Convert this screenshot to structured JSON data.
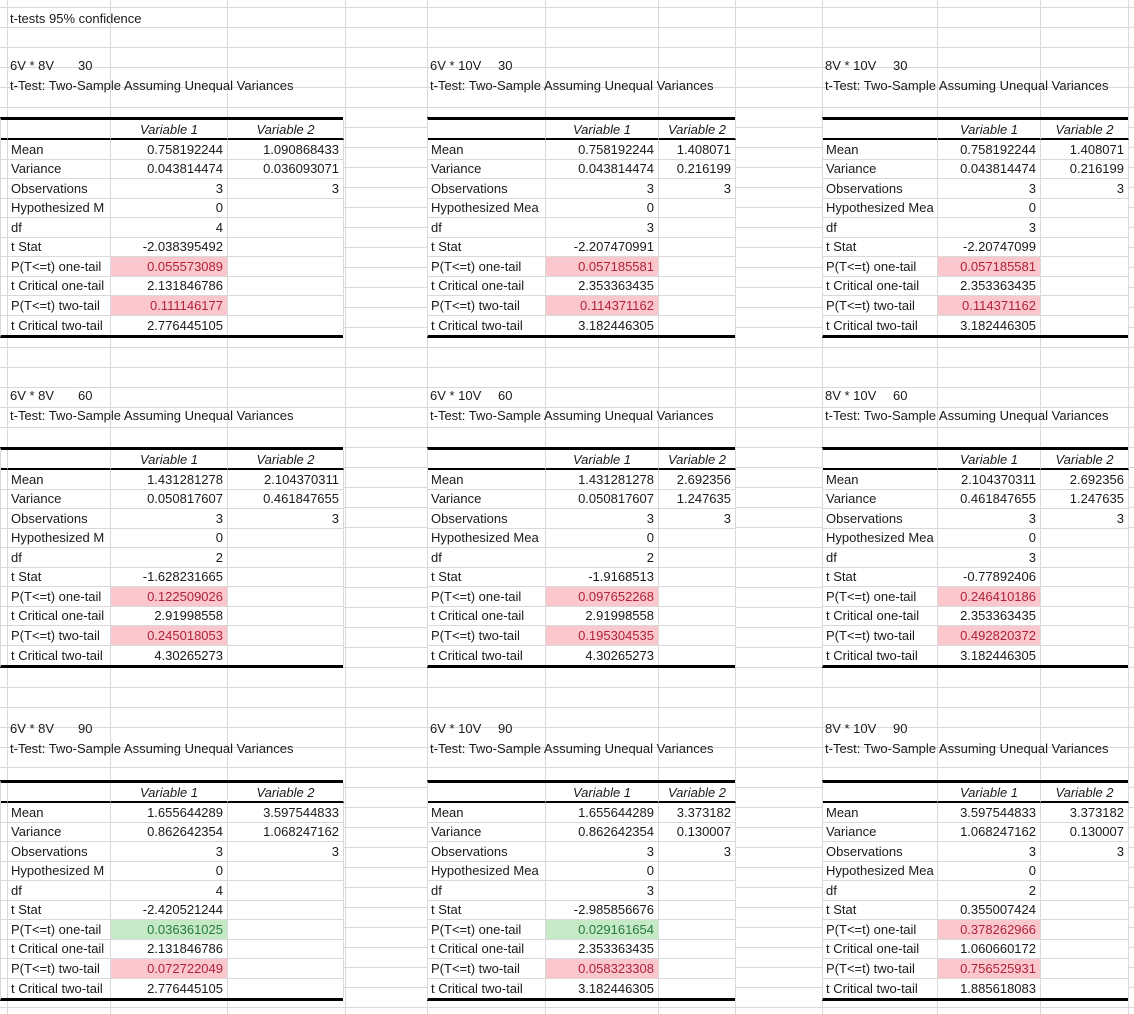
{
  "sheet_title": "t-tests 95% confidence",
  "headers": {
    "v1": "Variable 1",
    "v2": "Variable 2"
  },
  "colors": {
    "gridline": "#d9d9d9",
    "flag_bad_bg": "#fac7cd",
    "flag_bad_text": "#b02338",
    "flag_good_bg": "#c6e9c8",
    "flag_good_text": "#237c3b",
    "selection_border": "#1e7145"
  },
  "selection": {
    "table": "8V * 10V 90",
    "row": "P(T<=t) two-tail",
    "value": "0.756525931"
  },
  "tables": [
    {
      "pair": "6V * 8V",
      "n": "30",
      "test_title": "t-Test: Two-Sample Assuming Unequal Variances",
      "rows": [
        {
          "label": "Mean",
          "v1": "0.758192244",
          "v2": "1.090868433",
          "hl": ""
        },
        {
          "label": "Variance",
          "v1": "0.043814474",
          "v2": "0.036093071",
          "hl": ""
        },
        {
          "label": "Observations",
          "v1": "3",
          "v2": "3",
          "hl": ""
        },
        {
          "label": "Hypothesized M",
          "v1": "0",
          "v2": "",
          "hl": ""
        },
        {
          "label": "df",
          "v1": "4",
          "v2": "",
          "hl": ""
        },
        {
          "label": "t Stat",
          "v1": "-2.038395492",
          "v2": "",
          "hl": ""
        },
        {
          "label": "P(T<=t) one-tail",
          "v1": "0.055573089",
          "v2": "",
          "hl": "pink"
        },
        {
          "label": "t Critical one-tail",
          "v1": "2.131846786",
          "v2": "",
          "hl": ""
        },
        {
          "label": "P(T<=t) two-tail",
          "v1": "0.111146177",
          "v2": "",
          "hl": "pink"
        },
        {
          "label": "t Critical two-tail",
          "v1": "2.776445105",
          "v2": "",
          "hl": ""
        }
      ]
    },
    {
      "pair": "6V * 10V",
      "n": "30",
      "test_title": "t-Test: Two-Sample Assuming Unequal Variances",
      "rows": [
        {
          "label": "Mean",
          "v1": "0.758192244",
          "v2": "1.408071",
          "hl": ""
        },
        {
          "label": "Variance",
          "v1": "0.043814474",
          "v2": "0.216199",
          "hl": ""
        },
        {
          "label": "Observations",
          "v1": "3",
          "v2": "3",
          "hl": ""
        },
        {
          "label": "Hypothesized Mea",
          "v1": "0",
          "v2": "",
          "hl": ""
        },
        {
          "label": "df",
          "v1": "3",
          "v2": "",
          "hl": ""
        },
        {
          "label": "t Stat",
          "v1": "-2.207470991",
          "v2": "",
          "hl": ""
        },
        {
          "label": "P(T<=t) one-tail",
          "v1": "0.057185581",
          "v2": "",
          "hl": "pink"
        },
        {
          "label": "t Critical one-tail",
          "v1": "2.353363435",
          "v2": "",
          "hl": ""
        },
        {
          "label": "P(T<=t) two-tail",
          "v1": "0.114371162",
          "v2": "",
          "hl": "pink"
        },
        {
          "label": "t Critical two-tail",
          "v1": "3.182446305",
          "v2": "",
          "hl": ""
        }
      ]
    },
    {
      "pair": "8V * 10V",
      "n": "30",
      "test_title": "t-Test: Two-Sample Assuming Unequal Variances",
      "rows": [
        {
          "label": "Mean",
          "v1": "0.758192244",
          "v2": "1.408071",
          "hl": ""
        },
        {
          "label": "Variance",
          "v1": "0.043814474",
          "v2": "0.216199",
          "hl": ""
        },
        {
          "label": "Observations",
          "v1": "3",
          "v2": "3",
          "hl": ""
        },
        {
          "label": "Hypothesized Mea",
          "v1": "0",
          "v2": "",
          "hl": ""
        },
        {
          "label": "df",
          "v1": "3",
          "v2": "",
          "hl": ""
        },
        {
          "label": "t Stat",
          "v1": "-2.20747099",
          "v2": "",
          "hl": ""
        },
        {
          "label": "P(T<=t) one-tail",
          "v1": "0.057185581",
          "v2": "",
          "hl": "pink"
        },
        {
          "label": "t Critical one-tail",
          "v1": "2.353363435",
          "v2": "",
          "hl": ""
        },
        {
          "label": "P(T<=t) two-tail",
          "v1": "0.114371162",
          "v2": "",
          "hl": "pink"
        },
        {
          "label": "t Critical two-tail",
          "v1": "3.182446305",
          "v2": "",
          "hl": ""
        }
      ]
    },
    {
      "pair": "6V * 8V",
      "n": "60",
      "test_title": "t-Test: Two-Sample Assuming Unequal Variances",
      "rows": [
        {
          "label": "Mean",
          "v1": "1.431281278",
          "v2": "2.104370311",
          "hl": ""
        },
        {
          "label": "Variance",
          "v1": "0.050817607",
          "v2": "0.461847655",
          "hl": ""
        },
        {
          "label": "Observations",
          "v1": "3",
          "v2": "3",
          "hl": ""
        },
        {
          "label": "Hypothesized M",
          "v1": "0",
          "v2": "",
          "hl": ""
        },
        {
          "label": "df",
          "v1": "2",
          "v2": "",
          "hl": ""
        },
        {
          "label": "t Stat",
          "v1": "-1.628231665",
          "v2": "",
          "hl": ""
        },
        {
          "label": "P(T<=t) one-tail",
          "v1": "0.122509026",
          "v2": "",
          "hl": "pink"
        },
        {
          "label": "t Critical one-tail",
          "v1": "2.91998558",
          "v2": "",
          "hl": ""
        },
        {
          "label": "P(T<=t) two-tail",
          "v1": "0.245018053",
          "v2": "",
          "hl": "pink"
        },
        {
          "label": "t Critical two-tail",
          "v1": "4.30265273",
          "v2": "",
          "hl": ""
        }
      ]
    },
    {
      "pair": "6V * 10V",
      "n": "60",
      "test_title": "t-Test: Two-Sample Assuming Unequal Variances",
      "rows": [
        {
          "label": "Mean",
          "v1": "1.431281278",
          "v2": "2.692356",
          "hl": ""
        },
        {
          "label": "Variance",
          "v1": "0.050817607",
          "v2": "1.247635",
          "hl": ""
        },
        {
          "label": "Observations",
          "v1": "3",
          "v2": "3",
          "hl": ""
        },
        {
          "label": "Hypothesized Mea",
          "v1": "0",
          "v2": "",
          "hl": ""
        },
        {
          "label": "df",
          "v1": "2",
          "v2": "",
          "hl": ""
        },
        {
          "label": "t Stat",
          "v1": "-1.9168513",
          "v2": "",
          "hl": ""
        },
        {
          "label": "P(T<=t) one-tail",
          "v1": "0.097652268",
          "v2": "",
          "hl": "pink"
        },
        {
          "label": "t Critical one-tail",
          "v1": "2.91998558",
          "v2": "",
          "hl": ""
        },
        {
          "label": "P(T<=t) two-tail",
          "v1": "0.195304535",
          "v2": "",
          "hl": "pink"
        },
        {
          "label": "t Critical two-tail",
          "v1": "4.30265273",
          "v2": "",
          "hl": ""
        }
      ]
    },
    {
      "pair": "8V * 10V",
      "n": "60",
      "test_title": "t-Test: Two-Sample Assuming Unequal Variances",
      "rows": [
        {
          "label": "Mean",
          "v1": "2.104370311",
          "v2": "2.692356",
          "hl": ""
        },
        {
          "label": "Variance",
          "v1": "0.461847655",
          "v2": "1.247635",
          "hl": ""
        },
        {
          "label": "Observations",
          "v1": "3",
          "v2": "3",
          "hl": ""
        },
        {
          "label": "Hypothesized Mea",
          "v1": "0",
          "v2": "",
          "hl": ""
        },
        {
          "label": "df",
          "v1": "3",
          "v2": "",
          "hl": ""
        },
        {
          "label": "t Stat",
          "v1": "-0.77892406",
          "v2": "",
          "hl": ""
        },
        {
          "label": "P(T<=t) one-tail",
          "v1": "0.246410186",
          "v2": "",
          "hl": "pink"
        },
        {
          "label": "t Critical one-tail",
          "v1": "2.353363435",
          "v2": "",
          "hl": ""
        },
        {
          "label": "P(T<=t) two-tail",
          "v1": "0.492820372",
          "v2": "",
          "hl": "pink"
        },
        {
          "label": "t Critical two-tail",
          "v1": "3.182446305",
          "v2": "",
          "hl": ""
        }
      ]
    },
    {
      "pair": "6V * 8V",
      "n": "90",
      "test_title": "t-Test: Two-Sample Assuming Unequal Variances",
      "rows": [
        {
          "label": "Mean",
          "v1": "1.655644289",
          "v2": "3.597544833",
          "hl": ""
        },
        {
          "label": "Variance",
          "v1": "0.862642354",
          "v2": "1.068247162",
          "hl": ""
        },
        {
          "label": "Observations",
          "v1": "3",
          "v2": "3",
          "hl": ""
        },
        {
          "label": "Hypothesized M",
          "v1": "0",
          "v2": "",
          "hl": ""
        },
        {
          "label": "df",
          "v1": "4",
          "v2": "",
          "hl": ""
        },
        {
          "label": "t Stat",
          "v1": "-2.420521244",
          "v2": "",
          "hl": ""
        },
        {
          "label": "P(T<=t) one-tail",
          "v1": "0.036361025",
          "v2": "",
          "hl": "green"
        },
        {
          "label": "t Critical one-tail",
          "v1": "2.131846786",
          "v2": "",
          "hl": ""
        },
        {
          "label": "P(T<=t) two-tail",
          "v1": "0.072722049",
          "v2": "",
          "hl": "pink"
        },
        {
          "label": "t Critical two-tail",
          "v1": "2.776445105",
          "v2": "",
          "hl": ""
        }
      ]
    },
    {
      "pair": "6V * 10V",
      "n": "90",
      "test_title": "t-Test: Two-Sample Assuming Unequal Variances",
      "rows": [
        {
          "label": "Mean",
          "v1": "1.655644289",
          "v2": "3.373182",
          "hl": ""
        },
        {
          "label": "Variance",
          "v1": "0.862642354",
          "v2": "0.130007",
          "hl": ""
        },
        {
          "label": "Observations",
          "v1": "3",
          "v2": "3",
          "hl": ""
        },
        {
          "label": "Hypothesized Mea",
          "v1": "0",
          "v2": "",
          "hl": ""
        },
        {
          "label": "df",
          "v1": "3",
          "v2": "",
          "hl": ""
        },
        {
          "label": "t Stat",
          "v1": "-2.985856676",
          "v2": "",
          "hl": ""
        },
        {
          "label": "P(T<=t) one-tail",
          "v1": "0.029161654",
          "v2": "",
          "hl": "green"
        },
        {
          "label": "t Critical one-tail",
          "v1": "2.353363435",
          "v2": "",
          "hl": ""
        },
        {
          "label": "P(T<=t) two-tail",
          "v1": "0.058323308",
          "v2": "",
          "hl": "pink"
        },
        {
          "label": "t Critical two-tail",
          "v1": "3.182446305",
          "v2": "",
          "hl": ""
        }
      ]
    },
    {
      "pair": "8V * 10V",
      "n": "90",
      "test_title": "t-Test: Two-Sample Assuming Unequal Variances",
      "rows": [
        {
          "label": "Mean",
          "v1": "3.597544833",
          "v2": "3.373182",
          "hl": ""
        },
        {
          "label": "Variance",
          "v1": "1.068247162",
          "v2": "0.130007",
          "hl": ""
        },
        {
          "label": "Observations",
          "v1": "3",
          "v2": "3",
          "hl": ""
        },
        {
          "label": "Hypothesized Mea",
          "v1": "0",
          "v2": "",
          "hl": ""
        },
        {
          "label": "df",
          "v1": "2",
          "v2": "",
          "hl": ""
        },
        {
          "label": "t Stat",
          "v1": "0.355007424",
          "v2": "",
          "hl": ""
        },
        {
          "label": "P(T<=t) one-tail",
          "v1": "0.378262966",
          "v2": "",
          "hl": "pink"
        },
        {
          "label": "t Critical one-tail",
          "v1": "1.060660172",
          "v2": "",
          "hl": ""
        },
        {
          "label": "P(T<=t) two-tail",
          "v1": "0.756525931",
          "v2": "",
          "hl": "pink",
          "selected": true
        },
        {
          "label": "t Critical two-tail",
          "v1": "1.885618083",
          "v2": "",
          "hl": ""
        }
      ]
    }
  ]
}
